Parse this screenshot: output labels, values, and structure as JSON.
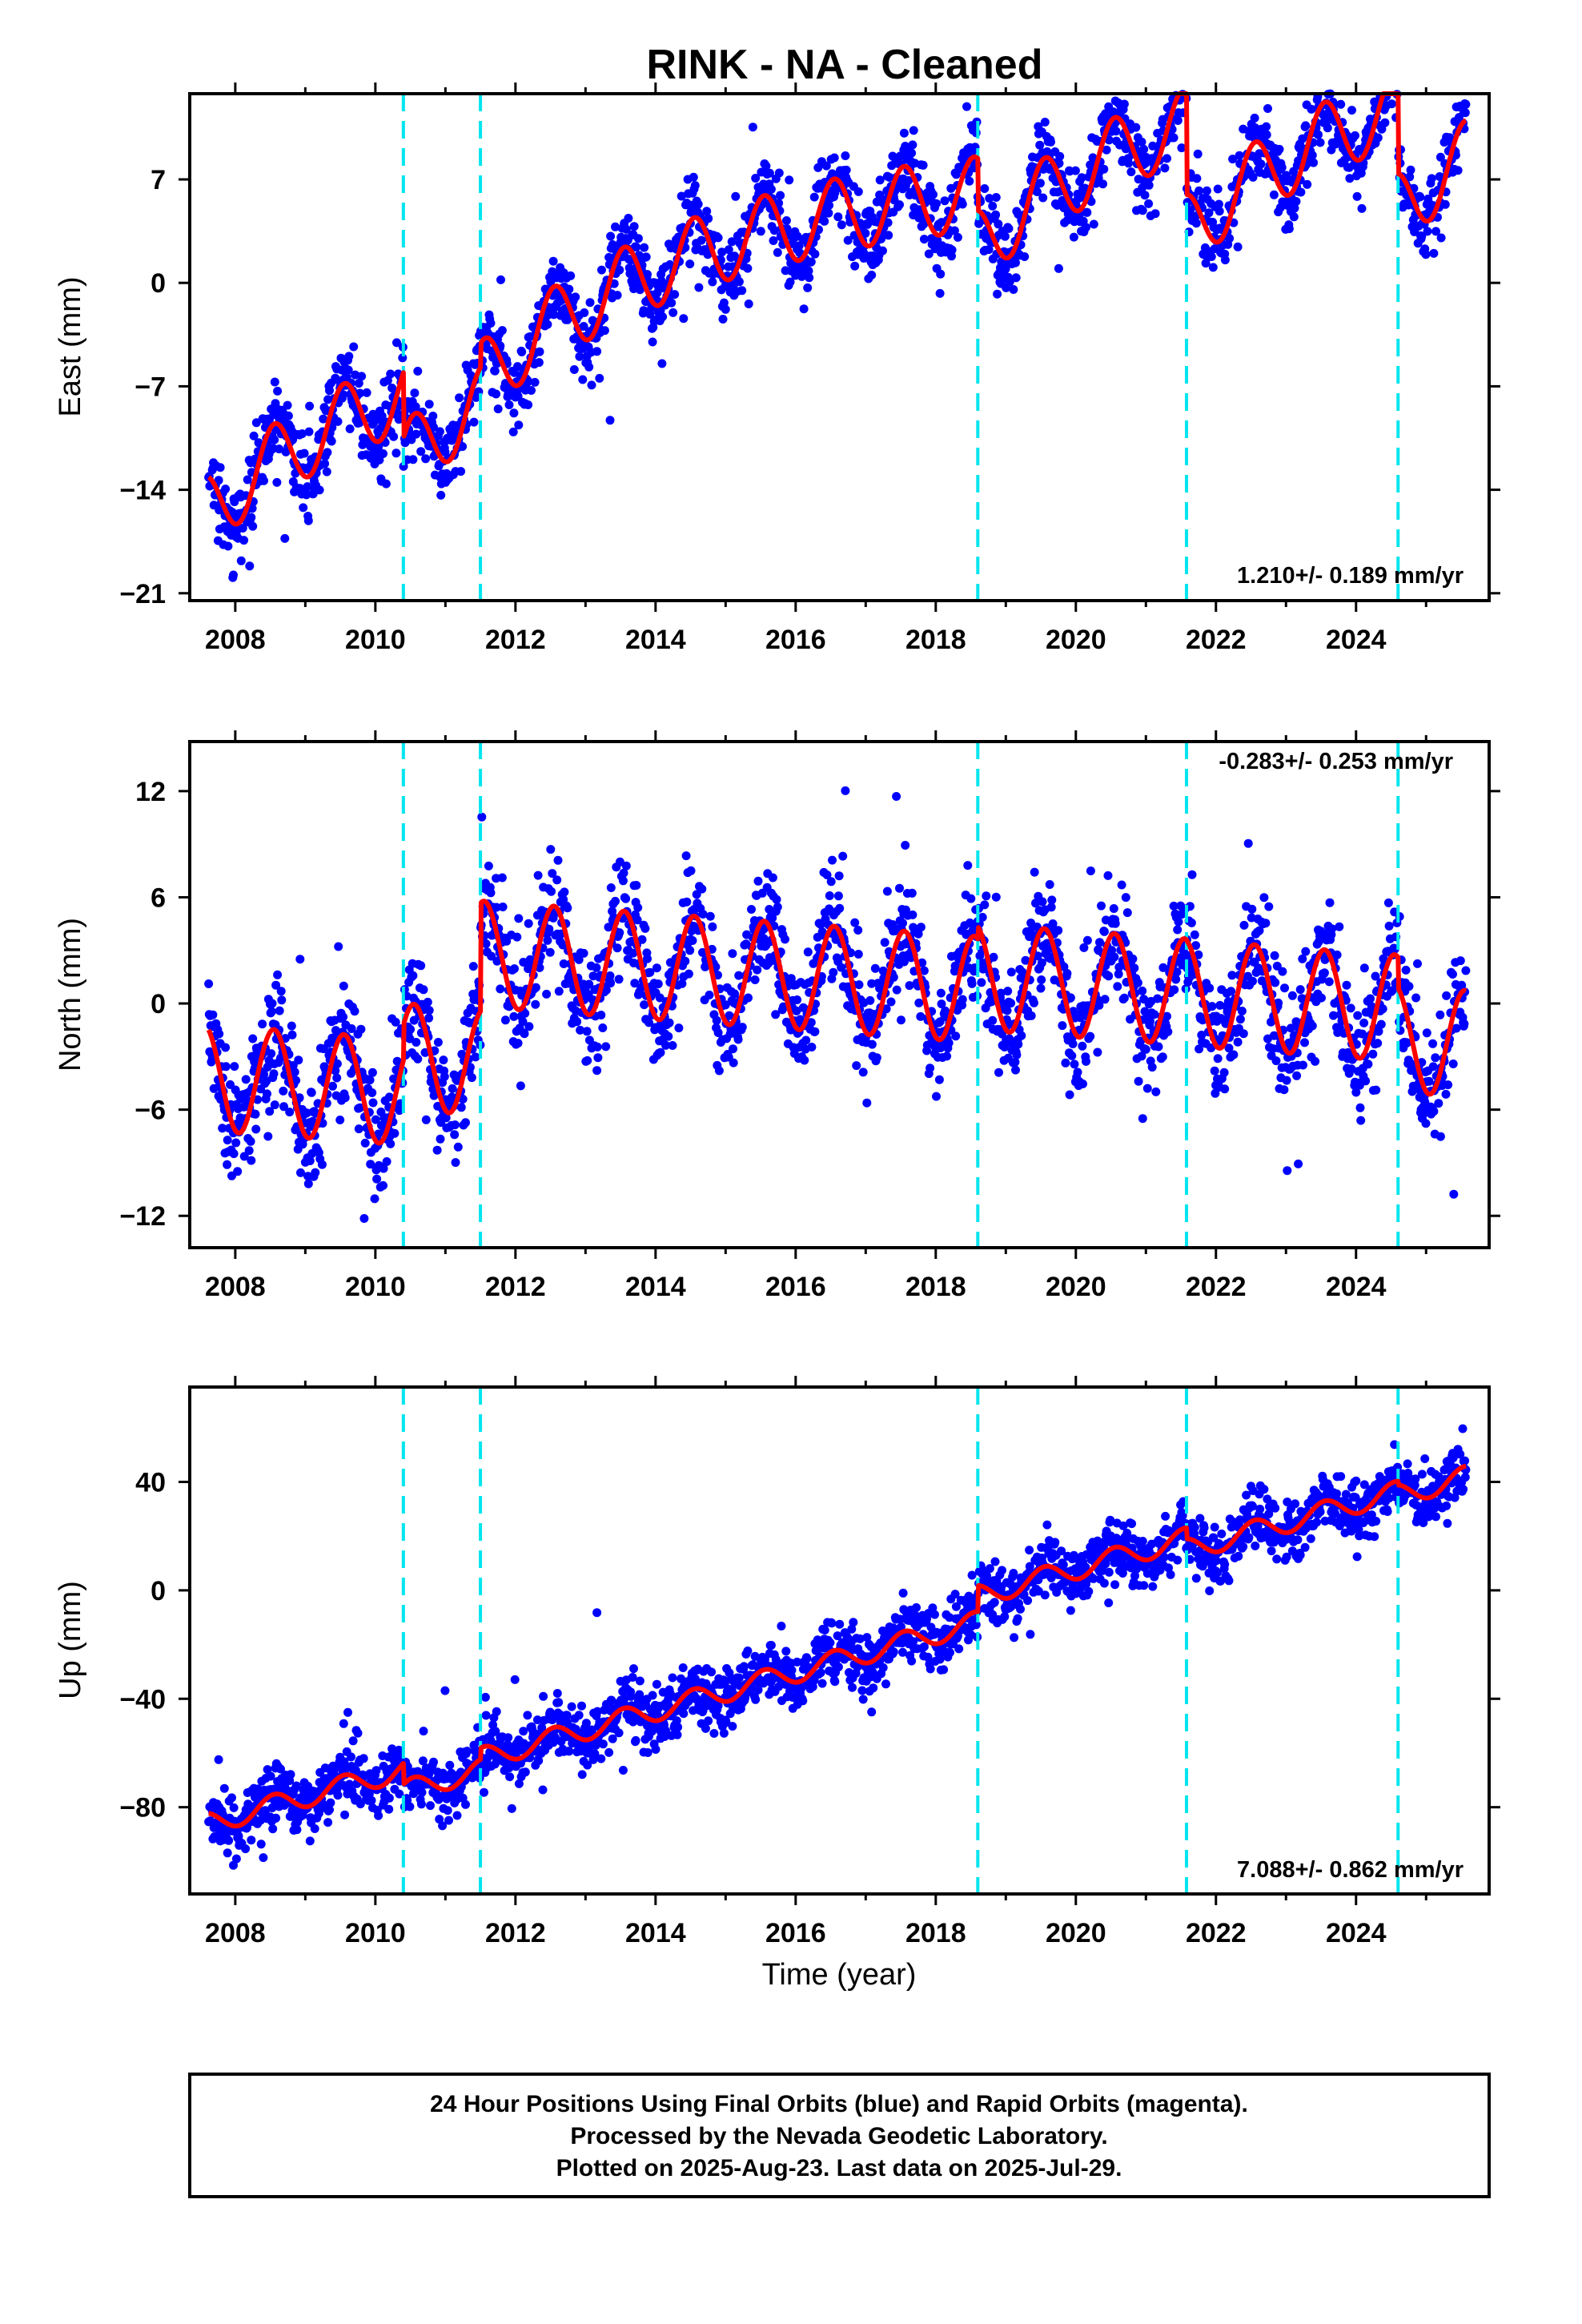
{
  "title": "RINK  - NA - Cleaned",
  "colors": {
    "points": "#0000ff",
    "model": "#ff0000",
    "events": "#00e5ee",
    "frame": "#000000"
  },
  "chart_data": [
    {
      "type": "scatter",
      "xlabel": "",
      "ylabel": "East (mm)",
      "xlim": [
        2007.35,
        2025.9
      ],
      "ylim": [
        -21.5,
        12.8
      ],
      "xticks": [
        "2008",
        "2010",
        "2012",
        "2014",
        "2016",
        "2018",
        "2020",
        "2022",
        "2024"
      ],
      "yticks": [
        "7",
        "0",
        "-7",
        "-14",
        "-21"
      ],
      "rate_label": "1.210+/- 0.189 mm/yr",
      "rate_position": "bottom-right",
      "grid": false,
      "event_lines_x": [
        2010.4,
        2011.5,
        2018.6,
        2021.58,
        2024.6
      ],
      "model_params": {
        "rate": 1.21,
        "seasonal_amplitude": 2.5,
        "offsets": [
          [
            2007.6,
            -15.5
          ],
          [
            2010.4,
            -12.0
          ],
          [
            2011.5,
            -6.5
          ],
          [
            2018.6,
            2.5
          ],
          [
            2021.58,
            3.5
          ],
          [
            2024.6,
            5.0
          ]
        ],
        "curve": "exponential",
        "tau": 3.5,
        "limit": 17
      },
      "series": [
        {
          "name": "Final Orbits",
          "style": "points",
          "x_range": [
            2007.62,
            2025.57
          ],
          "scatter_sd": 1.3
        },
        {
          "name": "Model",
          "style": "line"
        }
      ]
    },
    {
      "type": "scatter",
      "xlabel": "",
      "ylabel": "North (mm)",
      "xlim": [
        2007.35,
        2025.9
      ],
      "ylim": [
        -13.8,
        14.8
      ],
      "xticks": [
        "2008",
        "2010",
        "2012",
        "2014",
        "2016",
        "2018",
        "2020",
        "2022",
        "2024"
      ],
      "yticks": [
        "12",
        "6",
        "0",
        "-6",
        "-12"
      ],
      "rate_label": "-0.283+/- 0.253 mm/yr",
      "rate_position": "top-right",
      "grid": false,
      "event_lines_x": [
        2010.4,
        2011.5,
        2018.6,
        2021.58,
        2024.6
      ],
      "model_params": {
        "rate": -0.283,
        "seasonal_amplitude": 3.0,
        "offsets": [
          [
            2007.6,
            -4.2
          ],
          [
            2010.4,
            -3.0
          ],
          [
            2011.5,
            2.8
          ],
          [
            2018.6,
            1.5
          ],
          [
            2021.58,
            0.6
          ],
          [
            2024.6,
            -2.0
          ]
        ],
        "curve": "linear"
      },
      "series": [
        {
          "name": "Final Orbits",
          "style": "points",
          "x_range": [
            2007.62,
            2025.57
          ],
          "scatter_sd": 1.6
        },
        {
          "name": "Model",
          "style": "line"
        }
      ]
    },
    {
      "type": "scatter",
      "xlabel": "Time (year)",
      "ylabel": "Up (mm)",
      "xlim": [
        2007.35,
        2025.9
      ],
      "ylim": [
        -112,
        75
      ],
      "xticks": [
        "2008",
        "2010",
        "2012",
        "2014",
        "2016",
        "2018",
        "2020",
        "2022",
        "2024"
      ],
      "yticks": [
        "40",
        "0",
        "-40",
        "-80"
      ],
      "rate_label": "7.088+/- 0.862 mm/yr",
      "rate_position": "bottom-right",
      "grid": false,
      "event_lines_x": [
        2010.4,
        2011.5,
        2018.6,
        2021.58,
        2024.6
      ],
      "model_params": {
        "rate": 7.088,
        "seasonal_amplitude": 4.0,
        "offsets": [
          [
            2007.6,
            -86
          ],
          [
            2010.4,
            -74
          ],
          [
            2011.5,
            -62
          ],
          [
            2018.6,
            -2
          ],
          [
            2021.58,
            15
          ],
          [
            2024.6,
            35
          ]
        ],
        "curve": "linear"
      },
      "series": [
        {
          "name": "Final Orbits",
          "style": "points",
          "x_range": [
            2007.62,
            2025.57
          ],
          "scatter_sd": 5.5
        },
        {
          "name": "Model",
          "style": "line"
        }
      ]
    }
  ],
  "footer": {
    "line1": "24 Hour Positions Using Final Orbits (blue) and Rapid Orbits (magenta).",
    "line2": "Processed by the Nevada Geodetic Laboratory.",
    "line3": "Plotted on 2025-Aug-23. Last data on 2025-Jul-29."
  }
}
